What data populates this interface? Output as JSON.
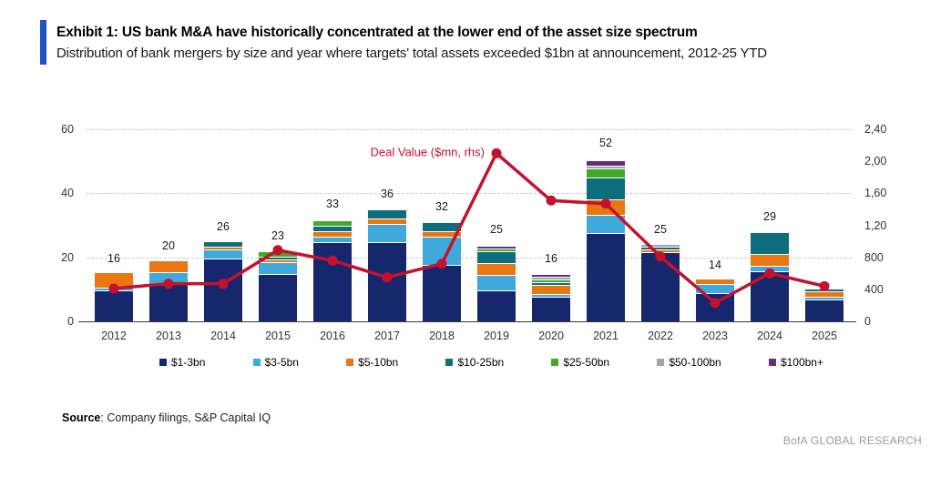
{
  "header": {
    "title": "Exhibit 1: US bank M&A have historically concentrated at the lower end of the asset size spectrum",
    "subtitle": "Distribution of bank mergers by size and year where targets' total assets exceeded $1bn at announcement, 2012-25 YTD"
  },
  "chart_data": {
    "type": "bar",
    "subtype": "stacked-bars-with-line-overlay",
    "categories": [
      "2012",
      "2013",
      "2014",
      "2015",
      "2016",
      "2017",
      "2018",
      "2019",
      "2020",
      "2021",
      "2022",
      "2023",
      "2024",
      "2025"
    ],
    "bar_totals": [
      "16",
      "20",
      "26",
      "23",
      "33",
      "36",
      "32",
      "25",
      "16",
      "52",
      "25",
      "14",
      "29",
      ""
    ],
    "series": [
      {
        "name": "$1-3bn",
        "color": "#16276d",
        "values": [
          10,
          12,
          20,
          15,
          25,
          25,
          18,
          10,
          8,
          28,
          22,
          9,
          16,
          7
        ]
      },
      {
        "name": "$3-5bn",
        "color": "#3fa9dc",
        "values": [
          1,
          4,
          3,
          4,
          2,
          6,
          9,
          5,
          1,
          6,
          0,
          3,
          2,
          1
        ]
      },
      {
        "name": "$5-10bn",
        "color": "#e87711",
        "values": [
          5,
          4,
          1,
          1,
          2,
          2,
          2,
          4,
          3,
          5,
          1,
          2,
          4,
          2
        ]
      },
      {
        "name": "$10-25bn",
        "color": "#0e6e7e",
        "values": [
          0,
          0,
          2,
          1,
          2,
          3,
          3,
          4,
          1,
          7,
          1,
          0,
          7,
          1
        ]
      },
      {
        "name": "$25-50bn",
        "color": "#44a829",
        "values": [
          0,
          0,
          0,
          2,
          2,
          0,
          0,
          1,
          1,
          3,
          0,
          0,
          0,
          0
        ]
      },
      {
        "name": "$50-100bn",
        "color": "#a2a4a7",
        "values": [
          0,
          0,
          0,
          0,
          0,
          0,
          0,
          0,
          1,
          1,
          1,
          0,
          0,
          0
        ]
      },
      {
        "name": "$100bn+",
        "color": "#662d79",
        "values": [
          0,
          0,
          0,
          0,
          0,
          0,
          0,
          1,
          1,
          2,
          0,
          0,
          0,
          0
        ]
      }
    ],
    "line": {
      "name": "Deal Value ($mn, rhs)",
      "color": "#c4122e",
      "values": [
        410,
        470,
        470,
        890,
        760,
        550,
        720,
        2100,
        1510,
        1470,
        810,
        230,
        600,
        440
      ],
      "label_anchor_index": 7
    },
    "left_axis": {
      "ticks": [
        0,
        20,
        40,
        60
      ],
      "max": 62,
      "grid_at": [
        20,
        40,
        60
      ]
    },
    "right_axis": {
      "tick_labels": [
        "0",
        "400",
        "800",
        "1,20",
        "1,60",
        "2,00",
        "2,40"
      ],
      "tick_values": [
        0,
        400,
        800,
        1200,
        1600,
        2000,
        2400
      ],
      "max": 2480
    },
    "legend_position": "bottom",
    "grid": "horizontal-dashed"
  },
  "source": {
    "label": "Source",
    "rest": ": Company filings, S&P Capital IQ"
  },
  "footer": {
    "brand": "BofA GLOBAL RESEARCH"
  }
}
